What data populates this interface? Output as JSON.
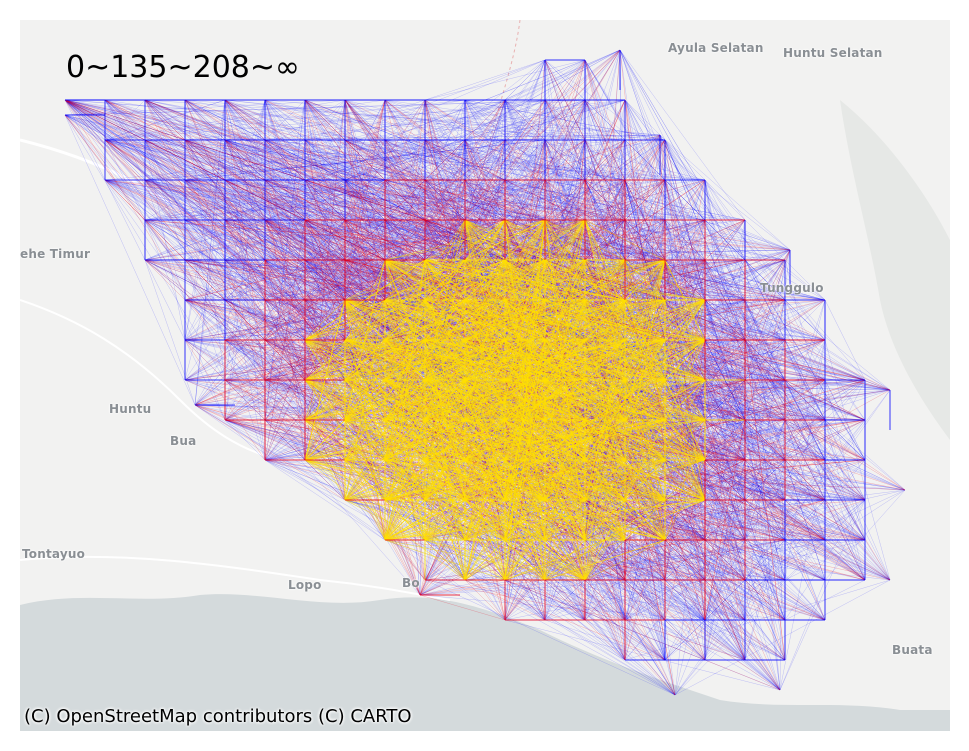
{
  "map": {
    "legend_title": "0~135~208~∞",
    "attribution": "(C) OpenStreetMap contributors (C) CARTO",
    "places": [
      {
        "id": "ayula-selatan",
        "name": "Ayula Selatan"
      },
      {
        "id": "huntu-selatan",
        "name": "Huntu Selatan"
      },
      {
        "id": "ehe-timur",
        "name": "ehe Timur"
      },
      {
        "id": "tunggulo",
        "name": "Tunggulo"
      },
      {
        "id": "huntu",
        "name": "Huntu"
      },
      {
        "id": "bua",
        "name": "Bua"
      },
      {
        "id": "tontayuo",
        "name": "Tontayuo"
      },
      {
        "id": "lopo",
        "name": "Lopo"
      },
      {
        "id": "buata",
        "name": "Buata"
      },
      {
        "id": "bo",
        "name": "Bo"
      }
    ]
  },
  "colors": {
    "land": "#f2f2f1",
    "water": "#d4dadc",
    "roads": "#ffffff",
    "low": "#0000ff",
    "mid": "#e8001c",
    "high": "#ffe000"
  },
  "chart_data": {
    "type": "flow-map",
    "legend": "0~135~208~∞",
    "bins": [
      {
        "range": "0~135",
        "color": "#0000ff"
      },
      {
        "range": "135~208",
        "color": "#e8001c"
      },
      {
        "range": "208~∞",
        "color": "#ffe000"
      }
    ]
  }
}
